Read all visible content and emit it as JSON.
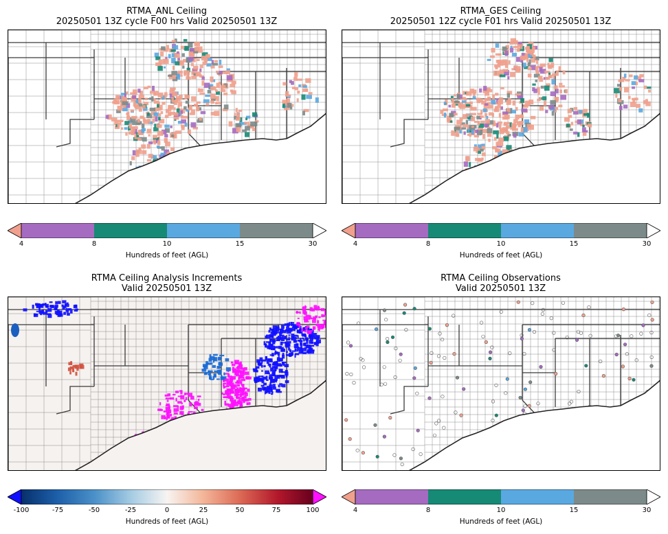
{
  "panels": [
    {
      "id": "anl",
      "title_line1": "RTMA_ANL Ceiling",
      "title_line2": "20250501 13Z cycle F00 hrs Valid 20250501 13Z",
      "colorbar": "ceiling"
    },
    {
      "id": "ges",
      "title_line1": "RTMA_GES Ceiling",
      "title_line2": "20250501 12Z cycle F01 hrs Valid 20250501 13Z",
      "colorbar": "ceiling"
    },
    {
      "id": "inc",
      "title_line1": "RTMA Ceiling Analysis Increments",
      "title_line2": "Valid 20250501 13Z",
      "colorbar": "increment"
    },
    {
      "id": "obs",
      "title_line1": "RTMA Ceiling Observations",
      "title_line2": "Valid 20250501 13Z",
      "colorbar": "ceiling"
    }
  ],
  "ceiling_colorbar": {
    "label": "Hundreds of feet (AGL)",
    "ticks": [
      "4",
      "8",
      "10",
      "15",
      "30"
    ],
    "under_color": "#f0a08c",
    "over_color": "#ffffff",
    "segments": [
      {
        "from": "4",
        "to": "8",
        "color": "#a56bc0"
      },
      {
        "from": "8",
        "to": "10",
        "color": "#168a75"
      },
      {
        "from": "10",
        "to": "15",
        "color": "#5aa8e0"
      },
      {
        "from": "15",
        "to": "30",
        "color": "#7c8b8a"
      }
    ]
  },
  "increment_colorbar": {
    "label": "Hundreds of feet (AGL)",
    "ticks": [
      "-100",
      "-75",
      "-50",
      "-25",
      "0",
      "25",
      "50",
      "75",
      "100"
    ],
    "under_color": "#1010ff",
    "over_color": "#ff10ff"
  },
  "map_colors": {
    "land": "#ffffff",
    "increment_background": "#f6f2f0",
    "state_lines": "#3a3a3a",
    "county_lines": "#8a8a8a"
  }
}
